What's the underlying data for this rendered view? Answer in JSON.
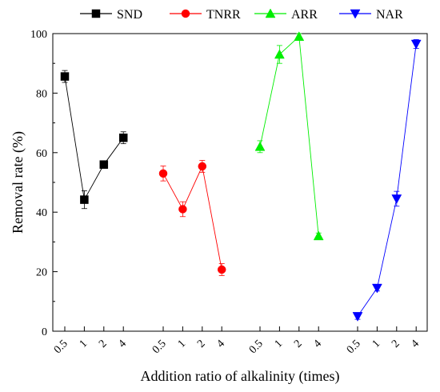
{
  "chart_data": {
    "type": "line",
    "xlabel": "Addition ratio of alkalinity (times)",
    "ylabel": "Removal rate (%)",
    "ylim": [
      0,
      100
    ],
    "yticks": [
      0,
      20,
      40,
      60,
      80,
      100
    ],
    "categories": [
      "0.5",
      "1",
      "2",
      "4"
    ],
    "grid": false,
    "legend_position": "top",
    "series": [
      {
        "name": "SND",
        "color": "#000000",
        "marker": "square",
        "values": [
          85.6,
          44.2,
          56.0,
          65.0
        ],
        "errors": [
          2,
          3,
          1,
          2
        ]
      },
      {
        "name": "TNRR",
        "color": "#ff0000",
        "marker": "circle",
        "values": [
          53.0,
          41.0,
          55.4,
          20.7
        ],
        "errors": [
          2.5,
          2.5,
          2,
          2
        ]
      },
      {
        "name": "ARR",
        "color": "#00ee00",
        "marker": "triangle-up",
        "values": [
          62.0,
          93.0,
          99.0,
          32.0
        ],
        "errors": [
          2,
          3,
          1,
          1
        ]
      },
      {
        "name": "NAR",
        "color": "#0000ff",
        "marker": "triangle-down",
        "values": [
          5.0,
          14.5,
          44.5,
          96.5
        ],
        "errors": [
          1,
          1,
          2.5,
          1.5
        ]
      }
    ]
  }
}
